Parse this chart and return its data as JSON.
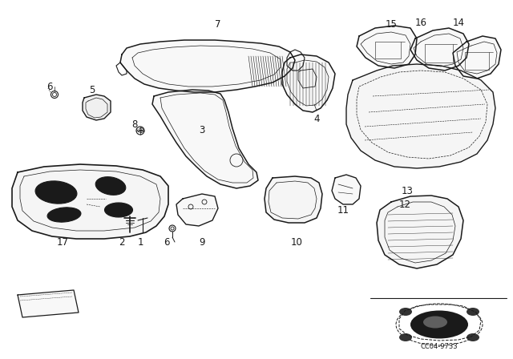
{
  "background_color": "#ffffff",
  "line_color": "#1a1a1a",
  "diagram_code": "CC04-9733",
  "fig_width": 6.4,
  "fig_height": 4.48,
  "dpi": 100
}
